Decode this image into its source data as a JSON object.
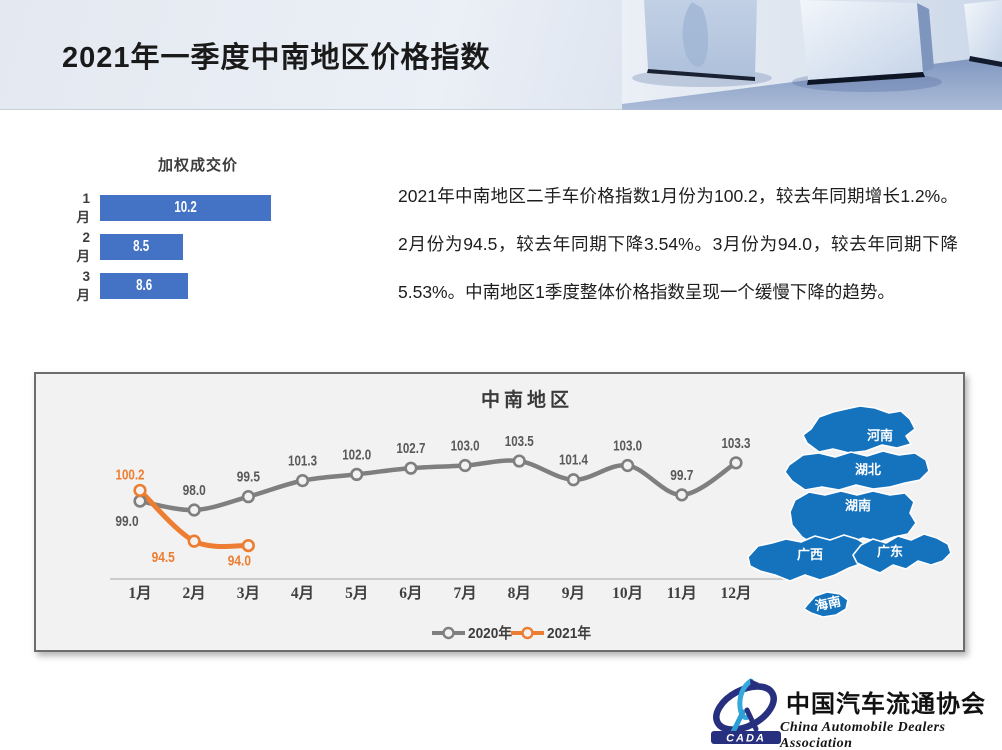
{
  "header": {
    "title": "2021年一季度中南地区价格指数"
  },
  "analysis": {
    "text": "2021年中南地区二手车价格指数1月份为100.2，较去年同期增长1.2%。2月份为94.5，较去年同期下降3.54%。3月份为94.0，较去年同期下降5.53%。中南地区1季度整体价格指数呈现一个缓慢下降的趋势。"
  },
  "chart_data": [
    {
      "id": "weighted-deal-price",
      "type": "bar",
      "orientation": "horizontal",
      "title": "加权成交价",
      "categories": [
        "1月",
        "2月",
        "3月"
      ],
      "values": [
        10.2,
        8.5,
        8.6
      ],
      "bar_color": "#4472C4",
      "value_label_color": "#FFFFFF",
      "xlim": [
        6.9,
        10.2
      ],
      "grid": false
    },
    {
      "id": "central-south-price-index",
      "type": "line",
      "title": "中南地区",
      "categories": [
        "1月",
        "2月",
        "3月",
        "4月",
        "5月",
        "6月",
        "7月",
        "8月",
        "9月",
        "10月",
        "11月",
        "12月"
      ],
      "series": [
        {
          "name": "2020年",
          "color": "#7F7F7F",
          "values": [
            99.0,
            98.0,
            99.5,
            101.3,
            102.0,
            102.7,
            103.0,
            103.5,
            101.4,
            103.0,
            99.7,
            103.3
          ]
        },
        {
          "name": "2021年",
          "color": "#ED7D31",
          "values": [
            100.2,
            94.5,
            94.0
          ]
        }
      ],
      "ylim": [
        92,
        106
      ],
      "grid": false,
      "legend_position": "bottom",
      "panel_bg": "#F2F2F2",
      "label_color_2020": "#595959",
      "label_color_2021": "#ED7D31"
    }
  ],
  "map": {
    "region_fill": "#1573BE",
    "labels": [
      "河南",
      "湖北",
      "湖南",
      "广西",
      "广东",
      "海南"
    ]
  },
  "logo": {
    "acronym": "CADA",
    "title_cn": "中国汽车流通协会",
    "title_en": "China Automobile Dealers Association"
  }
}
